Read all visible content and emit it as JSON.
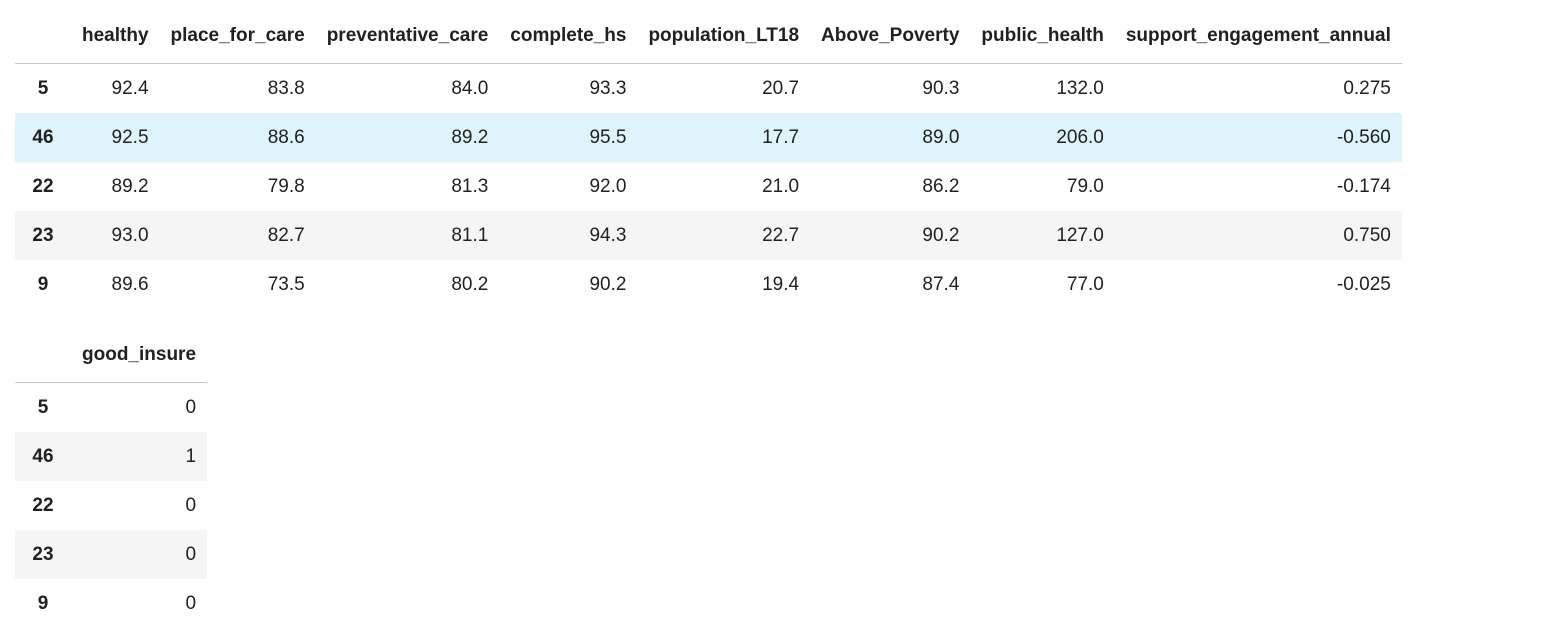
{
  "table1": {
    "columns": [
      "healthy",
      "place_for_care",
      "preventative_care",
      "complete_hs",
      "population_LT18",
      "Above_Poverty",
      "public_health",
      "support_engagement_annual"
    ],
    "rows": [
      {
        "index": "5",
        "values": [
          "92.4",
          "83.8",
          "84.0",
          "93.3",
          "20.7",
          "90.3",
          "132.0",
          "0.275"
        ]
      },
      {
        "index": "46",
        "values": [
          "92.5",
          "88.6",
          "89.2",
          "95.5",
          "17.7",
          "89.0",
          "206.0",
          "-0.560"
        ]
      },
      {
        "index": "22",
        "values": [
          "89.2",
          "79.8",
          "81.3",
          "92.0",
          "21.0",
          "86.2",
          "79.0",
          "-0.174"
        ]
      },
      {
        "index": "23",
        "values": [
          "93.0",
          "82.7",
          "81.1",
          "94.3",
          "22.7",
          "90.2",
          "127.0",
          "0.750"
        ]
      },
      {
        "index": "9",
        "values": [
          "89.6",
          "73.5",
          "80.2",
          "90.2",
          "19.4",
          "87.4",
          "77.0",
          "-0.025"
        ]
      }
    ]
  },
  "table2": {
    "columns": [
      "good_insure"
    ],
    "rows": [
      {
        "index": "5",
        "values": [
          "0"
        ]
      },
      {
        "index": "46",
        "values": [
          "1"
        ]
      },
      {
        "index": "22",
        "values": [
          "0"
        ]
      },
      {
        "index": "23",
        "values": [
          "0"
        ]
      },
      {
        "index": "9",
        "values": [
          "0"
        ]
      }
    ]
  },
  "colors": {
    "stripe": "#f5f5f5",
    "hover_row": "#dff3fb",
    "header_border": "#c6c6c6"
  }
}
